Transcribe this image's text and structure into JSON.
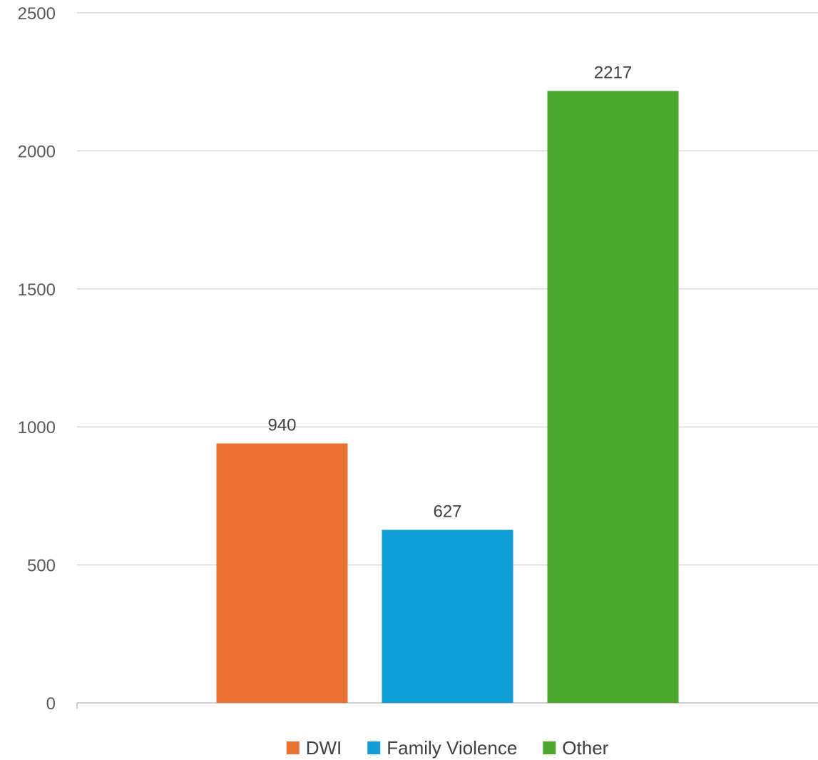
{
  "chart_data": {
    "type": "bar",
    "title": "",
    "xlabel": "",
    "ylabel": "",
    "ylim": [
      0,
      2500
    ],
    "yticks": [
      0,
      500,
      1000,
      1500,
      2000,
      2500
    ],
    "grid": true,
    "legend_position": "bottom",
    "show_data_labels": true,
    "series": [
      {
        "name": "DWI",
        "value": 940,
        "color": "#E97132"
      },
      {
        "name": "Family Violence",
        "value": 627,
        "color": "#0F9ED5"
      },
      {
        "name": "Other",
        "value": 2217,
        "color": "#4EA72E"
      }
    ]
  }
}
